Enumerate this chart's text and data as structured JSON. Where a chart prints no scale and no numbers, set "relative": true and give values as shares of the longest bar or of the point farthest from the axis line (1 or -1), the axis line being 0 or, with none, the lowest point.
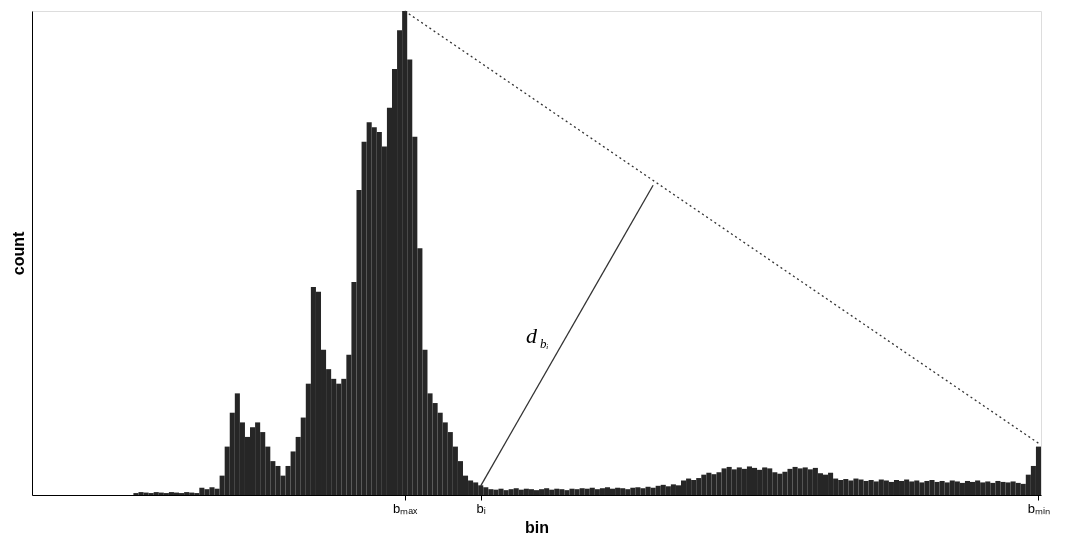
{
  "chart_data": {
    "type": "bar",
    "relative": true,
    "xlabel": "bin",
    "ylabel": "count",
    "tick_labels": "x",
    "categories": [
      null,
      null,
      null,
      null,
      null,
      null,
      null,
      null,
      null,
      null,
      null,
      null,
      null,
      null,
      null,
      null,
      null,
      null,
      null,
      null,
      null,
      null,
      null,
      null,
      null,
      null,
      null,
      null,
      null,
      null,
      null,
      null,
      null,
      null,
      null,
      null,
      null,
      null,
      null,
      null,
      null,
      null,
      null,
      null,
      null,
      null,
      null,
      null,
      null,
      null,
      null,
      null,
      null,
      null,
      null,
      null,
      null,
      null,
      null,
      null,
      null,
      null,
      null,
      null,
      null,
      null,
      null,
      null,
      null,
      null,
      null,
      null,
      null,
      "bₘₐₓ",
      null,
      null,
      null,
      null,
      null,
      null,
      null,
      null,
      null,
      null,
      null,
      null,
      null,
      null,
      "bᵢ",
      null,
      null,
      null,
      null,
      null,
      null,
      null,
      null,
      null,
      null,
      null,
      null,
      null,
      null,
      null,
      null,
      null,
      null,
      null,
      null,
      null,
      null,
      null,
      null,
      null,
      null,
      null,
      null,
      null,
      null,
      null,
      null,
      null,
      null,
      null,
      null,
      null,
      null,
      null,
      null,
      null,
      null,
      null,
      null,
      null,
      null,
      null,
      null,
      null,
      null,
      null,
      null,
      null,
      null,
      null,
      null,
      null,
      null,
      null,
      null,
      null,
      null,
      null,
      null,
      null,
      null,
      null,
      null,
      null,
      null,
      null,
      null,
      null,
      null,
      null,
      null,
      null,
      null,
      null,
      null,
      null,
      null,
      null,
      null,
      null,
      null,
      null,
      null,
      null,
      null,
      null,
      null,
      null,
      null,
      null,
      null,
      null,
      null,
      null,
      null,
      null,
      null,
      null,
      null,
      null,
      null,
      null,
      null,
      null,
      "bₘᵢₙ"
    ],
    "series": [
      {
        "color": "#262626",
        "values": [
          0,
          0,
          0,
          0,
          0,
          0,
          0,
          0,
          0,
          0,
          0,
          0,
          0,
          0,
          0,
          0,
          0,
          0,
          0,
          0,
          0.004,
          0.006,
          0.005,
          0.004,
          0.006,
          0.005,
          0.004,
          0.006,
          0.005,
          0.004,
          0.006,
          0.005,
          0.004,
          0.015,
          0.012,
          0.016,
          0.013,
          0.04,
          0.1,
          0.17,
          0.21,
          0.15,
          0.12,
          0.14,
          0.15,
          0.13,
          0.1,
          0.07,
          0.06,
          0.04,
          0.06,
          0.09,
          0.12,
          0.16,
          0.23,
          0.43,
          0.42,
          0.3,
          0.26,
          0.24,
          0.23,
          0.24,
          0.29,
          0.44,
          0.63,
          0.73,
          0.77,
          0.76,
          0.75,
          0.72,
          0.8,
          0.88,
          0.96,
          1,
          0.9,
          0.74,
          0.51,
          0.3,
          0.21,
          0.19,
          0.17,
          0.15,
          0.13,
          0.1,
          0.07,
          0.04,
          0.03,
          0.026,
          0.02,
          0.016,
          0.012,
          0.011,
          0.013,
          0.01,
          0.012,
          0.014,
          0.011,
          0.013,
          0.012,
          0.01,
          0.012,
          0.014,
          0.011,
          0.013,
          0.012,
          0.01,
          0.013,
          0.012,
          0.014,
          0.013,
          0.015,
          0.012,
          0.014,
          0.016,
          0.013,
          0.015,
          0.014,
          0.012,
          0.015,
          0.016,
          0.014,
          0.017,
          0.015,
          0.019,
          0.021,
          0.018,
          0.022,
          0.02,
          0.03,
          0.034,
          0.031,
          0.035,
          0.042,
          0.046,
          0.043,
          0.047,
          0.055,
          0.058,
          0.053,
          0.057,
          0.054,
          0.059,
          0.056,
          0.052,
          0.057,
          0.055,
          0.047,
          0.044,
          0.048,
          0.054,
          0.058,
          0.055,
          0.057,
          0.053,
          0.056,
          0.045,
          0.042,
          0.046,
          0.034,
          0.031,
          0.033,
          0.03,
          0.034,
          0.032,
          0.029,
          0.031,
          0.028,
          0.032,
          0.03,
          0.027,
          0.031,
          0.029,
          0.032,
          0.028,
          0.03,
          0.026,
          0.029,
          0.031,
          0.027,
          0.029,
          0.026,
          0.03,
          0.028,
          0.025,
          0.029,
          0.027,
          0.03,
          0.026,
          0.028,
          0.025,
          0.029,
          0.027,
          0.026,
          0.028,
          0.025,
          0.023,
          0.042,
          0.06,
          0.1
        ]
      },
      {
        "type": "line",
        "color": "#333333",
        "line_style": "dotted",
        "values": [
          null,
          null,
          null,
          null,
          null,
          null,
          null,
          null,
          null,
          null,
          null,
          null,
          null,
          null,
          null,
          null,
          null,
          null,
          null,
          null,
          null,
          null,
          null,
          null,
          null,
          null,
          null,
          null,
          null,
          null,
          null,
          null,
          null,
          null,
          null,
          null,
          null,
          null,
          null,
          null,
          null,
          null,
          null,
          null,
          null,
          null,
          null,
          null,
          null,
          null,
          null,
          null,
          null,
          null,
          null,
          null,
          null,
          null,
          null,
          null,
          null,
          null,
          null,
          null,
          null,
          null,
          null,
          null,
          null,
          null,
          null,
          null,
          null,
          1,
          null,
          null,
          null,
          null,
          null,
          null,
          null,
          null,
          null,
          null,
          null,
          null,
          null,
          null,
          null,
          null,
          null,
          null,
          null,
          null,
          null,
          null,
          null,
          null,
          null,
          null,
          null,
          null,
          null,
          null,
          null,
          null,
          null,
          null,
          null,
          null,
          null,
          null,
          null,
          null,
          null,
          null,
          null,
          null,
          null,
          null,
          null,
          null,
          null,
          null,
          null,
          null,
          null,
          null,
          null,
          null,
          null,
          null,
          null,
          null,
          null,
          null,
          null,
          null,
          null,
          null,
          null,
          null,
          null,
          null,
          null,
          null,
          null,
          null,
          null,
          null,
          null,
          null,
          null,
          null,
          null,
          null,
          null,
          null,
          null,
          null,
          null,
          null,
          null,
          null,
          null,
          null,
          null,
          null,
          null,
          null,
          null,
          null,
          null,
          null,
          null,
          null,
          null,
          null,
          null,
          null,
          null,
          null,
          null,
          null,
          null,
          null,
          null,
          null,
          null,
          null,
          null,
          null,
          null,
          null,
          null,
          null,
          null,
          null,
          0.107
        ]
      },
      {
        "type": "line",
        "color": "#333333",
        "line_style": "solid",
        "values": [
          null,
          null,
          null,
          null,
          null,
          null,
          null,
          null,
          null,
          null,
          null,
          null,
          null,
          null,
          null,
          null,
          null,
          null,
          null,
          null,
          null,
          null,
          null,
          null,
          null,
          null,
          null,
          null,
          null,
          null,
          null,
          null,
          null,
          null,
          null,
          null,
          null,
          null,
          null,
          null,
          null,
          null,
          null,
          null,
          null,
          null,
          null,
          null,
          null,
          null,
          null,
          null,
          null,
          null,
          null,
          null,
          null,
          null,
          null,
          null,
          null,
          null,
          null,
          null,
          null,
          null,
          null,
          null,
          null,
          null,
          null,
          null,
          null,
          null,
          null,
          null,
          null,
          null,
          null,
          null,
          null,
          null,
          null,
          null,
          null,
          null,
          null,
          null,
          0.019,
          null,
          null,
          null,
          null,
          null,
          null,
          null,
          null,
          null,
          null,
          null,
          null,
          null,
          null,
          null,
          null,
          null,
          null,
          null,
          null,
          null,
          null,
          null,
          null,
          null,
          null,
          null,
          null,
          null,
          null,
          null,
          null,
          null,
          0.64,
          null,
          null,
          null,
          null,
          null,
          null,
          null,
          null,
          null,
          null,
          null,
          null,
          null,
          null,
          null,
          null,
          null,
          null,
          null,
          null,
          null,
          null,
          null,
          null,
          null,
          null,
          null,
          null,
          null,
          null,
          null,
          null,
          null,
          null,
          null,
          null,
          null,
          null,
          null,
          null,
          null,
          null,
          null,
          null,
          null,
          null,
          null,
          null,
          null,
          null,
          null,
          null,
          null,
          null,
          null,
          null,
          null,
          null,
          null,
          null,
          null,
          null,
          null,
          null,
          null,
          null,
          null,
          null,
          null,
          null,
          null,
          null,
          null,
          null,
          null,
          null
        ]
      }
    ],
    "annotations": [
      "d$_{bᵢ}$"
    ]
  }
}
